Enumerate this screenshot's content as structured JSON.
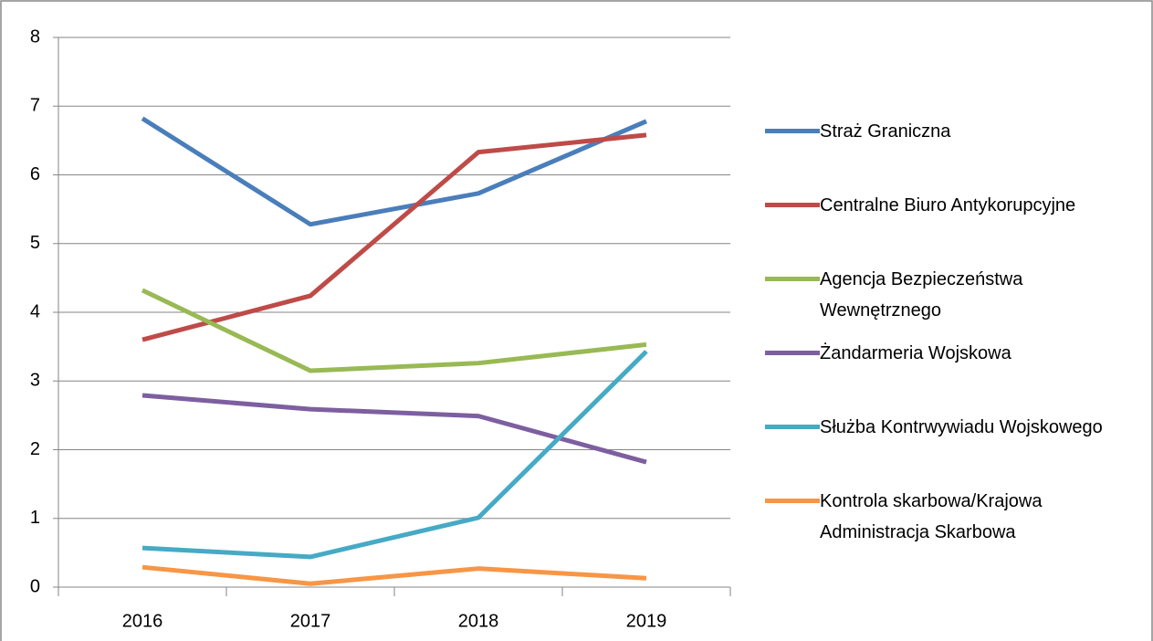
{
  "chart_data": {
    "type": "line",
    "categories": [
      "2016",
      "2017",
      "2018",
      "2019"
    ],
    "series": [
      {
        "name": "Straż Graniczna",
        "color": "#4a7ebb",
        "values": [
          6.82,
          5.28,
          5.73,
          6.78
        ]
      },
      {
        "name": "Centralne Biuro Antykorupcyjne",
        "color": "#be4b48",
        "values": [
          3.6,
          4.24,
          6.33,
          6.58
        ]
      },
      {
        "name": "Agencja Bezpieczeństwa Wewnętrznego",
        "color": "#98b954",
        "values": [
          4.32,
          3.15,
          3.26,
          3.53
        ]
      },
      {
        "name": "Żandarmeria Wojskowa",
        "color": "#7d5fa0",
        "values": [
          2.79,
          2.59,
          2.49,
          1.82
        ]
      },
      {
        "name": "Służba Kontrwywiadu Wojskowego",
        "color": "#46aac5",
        "values": [
          0.57,
          0.44,
          1.01,
          3.43
        ]
      },
      {
        "name": "Kontrola skarbowa/Krajowa Administracja Skarbowa",
        "color": "#f79646",
        "values": [
          0.29,
          0.05,
          0.27,
          0.13
        ]
      }
    ],
    "ylim": [
      0,
      8
    ],
    "yticks": [
      0,
      1,
      2,
      3,
      4,
      5,
      6,
      7,
      8
    ],
    "grid": true,
    "legend": "right"
  }
}
